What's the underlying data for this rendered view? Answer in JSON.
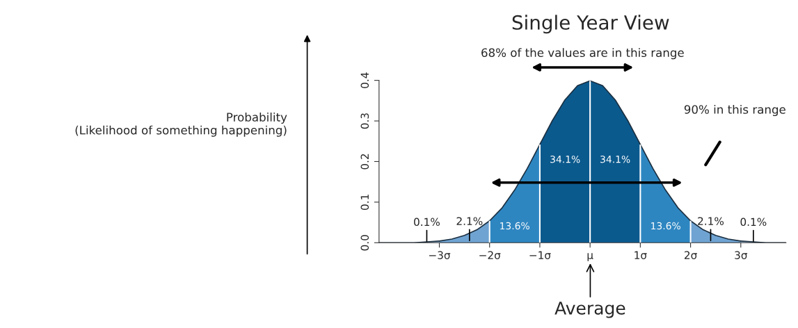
{
  "chart_data": {
    "type": "area",
    "title": "Single Year View",
    "series": [
      {
        "color": "#a9c8e6",
        "x": [
          -4.2,
          -3.5,
          -3.0
        ],
        "values": [
          0.0,
          0.0,
          0.004
        ]
      },
      {
        "color": "#6fa3d2",
        "x": [
          -3.0,
          -2.75,
          -2.5,
          -2.25,
          -2.0
        ],
        "values": [
          0.004,
          0.009,
          0.018,
          0.032,
          0.054
        ]
      },
      {
        "color": "#2e86c1",
        "x": [
          -2.0,
          -1.75,
          -1.5,
          -1.25,
          -1.0
        ],
        "values": [
          0.054,
          0.086,
          0.13,
          0.183,
          0.242
        ]
      },
      {
        "color": "#0b5a8e",
        "x": [
          -1.0,
          -0.75,
          -0.5,
          -0.25,
          0.0
        ],
        "values": [
          0.242,
          0.301,
          0.352,
          0.387,
          0.399
        ]
      },
      {
        "color": "#0b5a8e",
        "x": [
          0.0,
          0.25,
          0.5,
          0.75,
          1.0
        ],
        "values": [
          0.399,
          0.387,
          0.352,
          0.301,
          0.242
        ]
      },
      {
        "color": "#2e86c1",
        "x": [
          1.0,
          1.25,
          1.5,
          1.75,
          2.0
        ],
        "values": [
          0.242,
          0.183,
          0.13,
          0.086,
          0.054
        ]
      },
      {
        "color": "#6fa3d2",
        "x": [
          2.0,
          2.25,
          2.5,
          2.75,
          3.0
        ],
        "values": [
          0.054,
          0.032,
          0.018,
          0.009,
          0.004
        ]
      },
      {
        "color": "#a9c8e6",
        "x": [
          3.0,
          3.5,
          3.9
        ],
        "values": [
          0.004,
          0.0,
          0.0
        ]
      }
    ],
    "xlim": [
      -4.2,
      3.9
    ],
    "xticks": [
      {
        "value": -3,
        "label": "−3σ"
      },
      {
        "value": -2,
        "label": "−2σ"
      },
      {
        "value": -1,
        "label": "−1σ"
      },
      {
        "value": 0,
        "label": "μ"
      },
      {
        "value": 1,
        "label": "1σ"
      },
      {
        "value": 2,
        "label": "2σ"
      },
      {
        "value": 3,
        "label": "3σ"
      }
    ],
    "ylim": [
      0,
      0.4
    ],
    "yticks": [
      {
        "value": 0,
        "label": "0.0"
      },
      0.1,
      0.2,
      0.3,
      0.4
    ],
    "grid": false,
    "legend": false,
    "ref_lines": [
      {
        "axis": "x",
        "value": -2,
        "color": "#ffffff"
      },
      {
        "axis": "x",
        "value": -1,
        "color": "#ffffff"
      },
      {
        "axis": "x",
        "value": 0,
        "color": "#ffffff"
      },
      {
        "axis": "x",
        "value": 1,
        "color": "#ffffff"
      },
      {
        "axis": "x",
        "value": 2,
        "color": "#ffffff"
      }
    ],
    "annotations": [
      {
        "text": "0.1%",
        "x": -3.25,
        "y": 0.003
      },
      {
        "text": "2.1%",
        "x": -2.4,
        "y": 0.005
      },
      "13.6%",
      "34.1%",
      "34.1%",
      "13.6%",
      {
        "text": "2.1%",
        "x": 2.4,
        "y": 0.005
      },
      {
        "text": "0.1%",
        "x": 3.25,
        "y": 0.003
      },
      "68% of the values are in this range",
      "90% in this range",
      "Average",
      "Probability\n(Likelihood of something happening)"
    ]
  }
}
